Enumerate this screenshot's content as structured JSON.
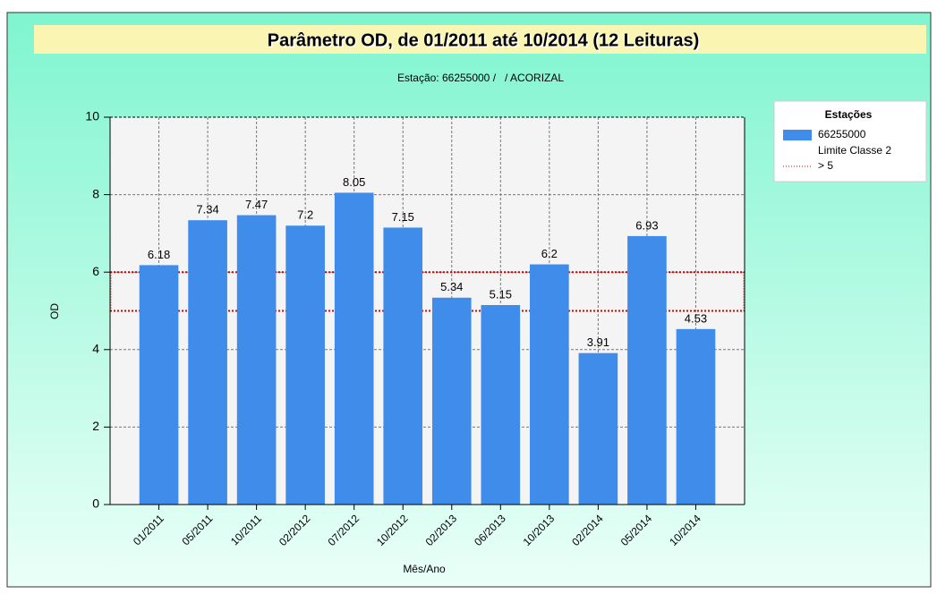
{
  "chart_data": {
    "type": "bar",
    "title": "Parâmetro OD, de 01/2011 até 10/2014 (12 Leituras)",
    "subtitle": "Estação: 66255000 /   / ACORIZAL",
    "x_label": "Mês/Ano",
    "y_label": "OD",
    "categories": [
      "01/2011",
      "05/2011",
      "10/2011",
      "02/2012",
      "07/2012",
      "10/2012",
      "02/2013",
      "06/2013",
      "10/2013",
      "02/2014",
      "05/2014",
      "10/2014"
    ],
    "series": [
      {
        "name": "66255000",
        "color": "#3f8ceb",
        "values": [
          6.18,
          7.34,
          7.47,
          7.2,
          8.05,
          7.15,
          5.34,
          5.15,
          6.2,
          3.91,
          6.93,
          4.53
        ]
      }
    ],
    "limit": {
      "name": "Limite Classe 2",
      "label": "> 5",
      "color": "#d40000",
      "band": [
        5,
        6
      ]
    },
    "legend_title": "Estações",
    "ylim": [
      0,
      10
    ],
    "yticks": [
      0,
      2,
      4,
      6,
      8,
      10
    ],
    "grid": true,
    "legend": "upper right"
  }
}
